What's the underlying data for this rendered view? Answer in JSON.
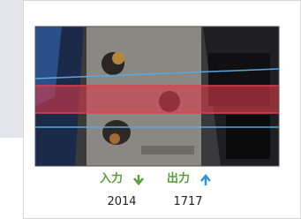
{
  "counter": {
    "in": {
      "label": "入力",
      "count": 2014
    },
    "out": {
      "label": "出力",
      "count": 1717
    }
  }
}
